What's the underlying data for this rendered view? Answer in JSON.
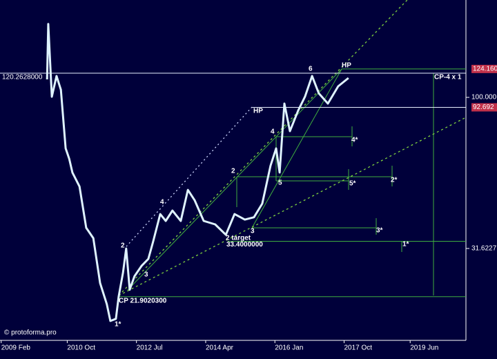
{
  "chart_data": {
    "type": "line",
    "log_scale": true,
    "background": "#00003a",
    "xlim": [
      2009.05,
      2020.83
    ],
    "ylim": [
      15.7,
      210
    ],
    "xticks": [
      {
        "value": 2009.08,
        "label": "2009 Feb"
      },
      {
        "value": 2010.75,
        "label": "2010 Oct"
      },
      {
        "value": 2012.5,
        "label": "2012 Jul"
      },
      {
        "value": 2014.25,
        "label": "2014 Apr"
      },
      {
        "value": 2016.0,
        "label": "2016 Jan"
      },
      {
        "value": 2017.75,
        "label": "2017 Oct"
      },
      {
        "value": 2019.42,
        "label": "2019 Jun"
      }
    ],
    "yticks": [
      {
        "value": 100,
        "label": "100.000"
      },
      {
        "value": 31.6227,
        "label": "31.6227"
      }
    ],
    "series": [
      {
        "color": "#dff3ff",
        "x": [
          2010.24,
          2010.27,
          2010.36,
          2010.48,
          2010.59,
          2010.71,
          2010.8,
          2010.88,
          2011.06,
          2011.23,
          2011.41,
          2011.58,
          2011.75,
          2011.84,
          2011.98,
          2012.05,
          2012.16,
          2012.24,
          2012.33,
          2012.45,
          2012.63,
          2012.8,
          2012.92,
          2013.1,
          2013.24,
          2013.41,
          2013.62,
          2013.8,
          2013.97,
          2014.2,
          2014.49,
          2014.76,
          2014.98,
          2015.24,
          2015.47,
          2015.68,
          2015.89,
          2016.03,
          2016.12,
          2016.24,
          2016.38,
          2016.59,
          2016.76,
          2016.94,
          2017.11,
          2017.34,
          2017.6,
          2017.86
        ],
        "values": [
          114.7,
          175,
          100.5,
          117.7,
          106,
          67.8,
          62.6,
          56.4,
          50.7,
          37.0,
          34.2,
          24.3,
          20.7,
          18.2,
          18.5,
          21.9,
          26.3,
          31.6,
          23.1,
          25.6,
          27.7,
          29.2,
          33.3,
          41.1,
          39.0,
          42.2,
          39.0,
          49.4,
          45.7,
          39.0,
          38.0,
          35.1,
          41.1,
          39.4,
          40.1,
          44.5,
          59.4,
          67.8,
          56.4,
          95.4,
          77.3,
          90.5,
          100.5,
          117.7,
          103.2,
          95.4,
          108.8,
          115.9
        ]
      }
    ],
    "levels": [
      {
        "value": 120.2628,
        "label": "120.2628000",
        "color": "#ffffff"
      },
      {
        "value": 124.16,
        "label": "124.160",
        "color": "#c0304a"
      },
      {
        "value": 92.692,
        "label": "92.692",
        "color": "#c0304a"
      },
      {
        "value": 33.4,
        "label": "33.4000000",
        "color": "#ffffff"
      },
      {
        "value": 21.90203,
        "label": "CP 21.9020300",
        "color": "#ffffff"
      }
    ],
    "annotations": [
      "6",
      "HP",
      "HP",
      "CP-4 x 1",
      "4",
      "4*",
      "2",
      "5",
      "5*",
      "2*",
      "4",
      "2",
      "3",
      "3",
      "3*",
      "2 target",
      "1*",
      "1*"
    ],
    "credit": "© protoforma.pro"
  }
}
